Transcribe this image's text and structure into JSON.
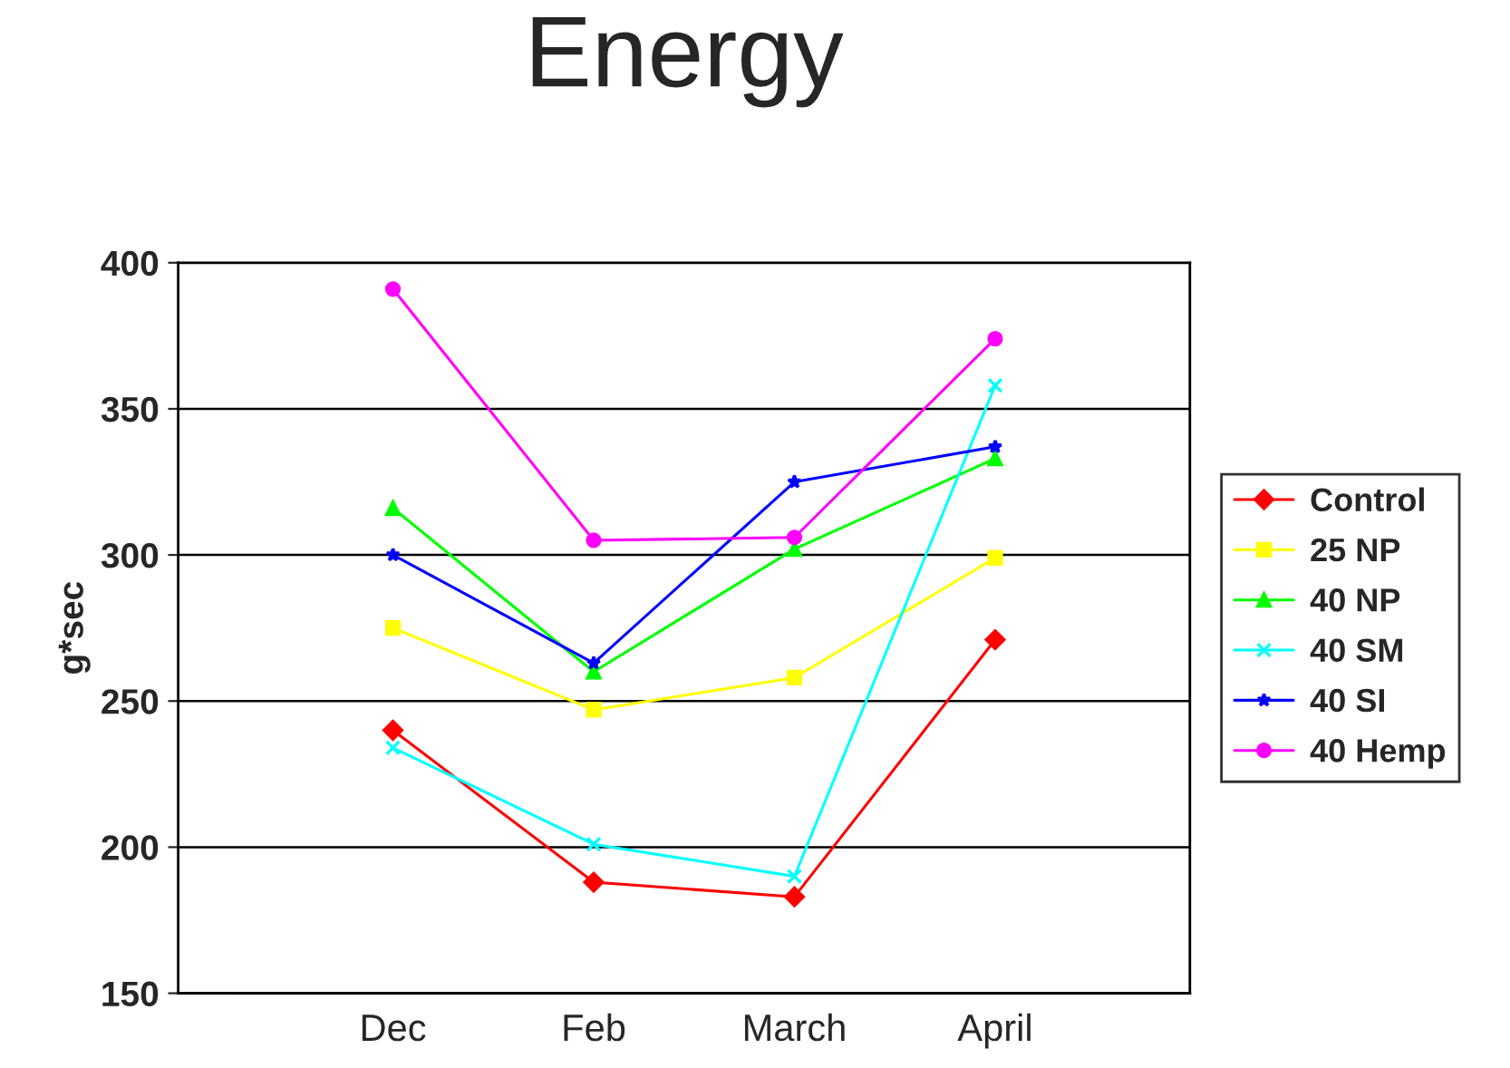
{
  "chart_data": {
    "type": "line",
    "title": "Energy",
    "ylabel": "g*sec",
    "categories": [
      "Dec",
      "Feb",
      "March",
      "April"
    ],
    "series": [
      {
        "name": "Control",
        "color": "#ff0000",
        "marker": "diamond",
        "values": [
          240,
          188,
          183,
          271
        ]
      },
      {
        "name": "25 NP",
        "color": "#ffff00",
        "marker": "square",
        "values": [
          275,
          247,
          258,
          299
        ]
      },
      {
        "name": "40 NP",
        "color": "#00ff00",
        "marker": "triangle",
        "values": [
          316,
          260,
          302,
          333
        ]
      },
      {
        "name": "40 SM",
        "color": "#00ffff",
        "marker": "cross",
        "values": [
          234,
          201,
          190,
          358
        ]
      },
      {
        "name": "40 SI",
        "color": "#0000ff",
        "marker": "star",
        "values": [
          300,
          263,
          325,
          337
        ]
      },
      {
        "name": "40 Hemp",
        "color": "#ff00ff",
        "marker": "circle",
        "values": [
          391,
          305,
          306,
          374
        ]
      }
    ],
    "ylim": [
      150,
      400
    ],
    "yticks": [
      150,
      200,
      250,
      300,
      350,
      400
    ],
    "grid": "y",
    "legend": "right",
    "line_style": "solid"
  }
}
